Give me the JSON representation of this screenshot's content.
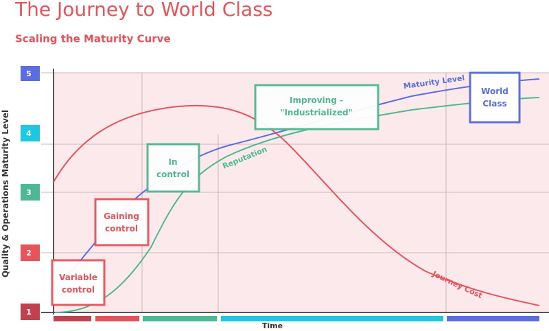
{
  "header": {
    "title": "The Journey to World Class",
    "subtitle": "Scaling the Maturity Curve"
  },
  "levels": [
    "5",
    "4",
    "3",
    "2",
    "1"
  ],
  "y_axis_label": "Quality & Operations Maturity Level",
  "x_axis_label": "Time",
  "stages": [
    [
      "Variable",
      "control"
    ],
    [
      "Gaining",
      "control"
    ],
    [
      "In",
      "control"
    ],
    [
      "Improving -",
      "\"Industrialized\""
    ],
    [
      "World",
      "Class"
    ]
  ],
  "curves": [
    "Maturity Level",
    "Reputation",
    "Journey Cost"
  ]
}
